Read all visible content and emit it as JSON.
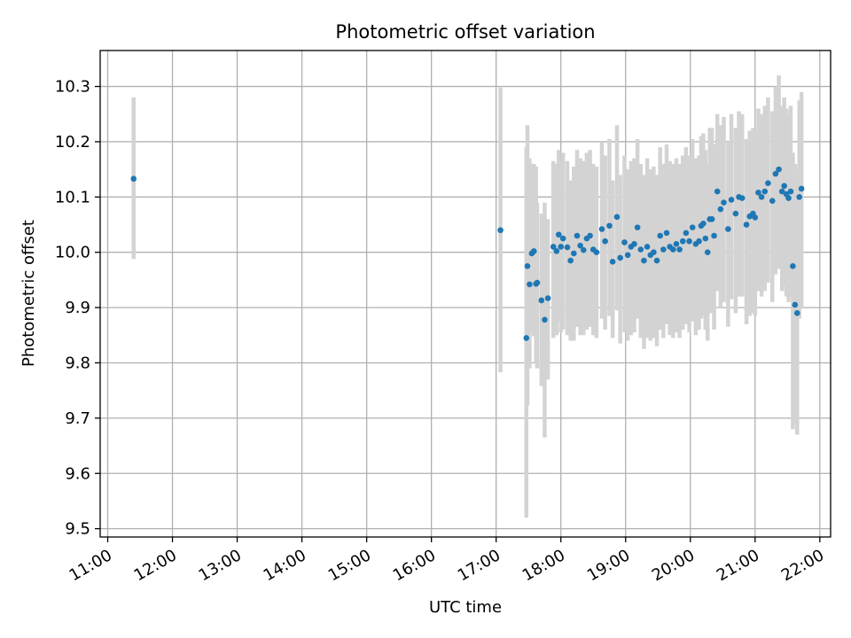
{
  "chart_data": {
    "type": "scatter",
    "title": "Photometric offset variation",
    "xlabel": "UTC time",
    "ylabel": "Photometric offset",
    "xlim": [
      "10:53",
      "22:10"
    ],
    "ylim": [
      9.485,
      10.365
    ],
    "x_ticks": [
      "11:00",
      "12:00",
      "13:00",
      "14:00",
      "15:00",
      "16:00",
      "17:00",
      "18:00",
      "19:00",
      "20:00",
      "21:00",
      "22:00"
    ],
    "y_ticks": [
      9.5,
      9.6,
      9.7,
      9.8,
      9.9,
      10.0,
      10.1,
      10.2,
      10.3
    ],
    "y_tick_labels": [
      "9.5",
      "9.6",
      "9.7",
      "9.8",
      "9.9",
      "10.0",
      "10.1",
      "10.2",
      "10.3"
    ],
    "grid": true,
    "colors": {
      "points": "#1f77b4",
      "error_bars": "#d3d3d3",
      "grid": "#b0b0b0"
    },
    "series": [
      {
        "x": [
          "11:24",
          "17:04",
          "17:28",
          "17:29",
          "17:31",
          "17:33",
          "17:35",
          "17:37",
          "17:38",
          "17:42",
          "17:45",
          "17:48",
          "17:53",
          "17:56",
          "17:58",
          "18:00",
          "18:02",
          "18:06",
          "18:09",
          "18:12",
          "18:15",
          "18:18",
          "18:21",
          "18:24",
          "18:27",
          "18:30",
          "18:33",
          "18:38",
          "18:41",
          "18:45",
          "18:48",
          "18:52",
          "18:55",
          "18:59",
          "19:02",
          "19:05",
          "19:08",
          "19:11",
          "19:14",
          "19:17",
          "19:20",
          "19:23",
          "19:26",
          "19:29",
          "19:32",
          "19:35",
          "19:38",
          "19:41",
          "19:44",
          "19:47",
          "19:50",
          "19:53",
          "19:56",
          "19:59",
          "20:02",
          "20:05",
          "20:08",
          "20:10",
          "20:12",
          "20:14",
          "20:16",
          "20:18",
          "20:20",
          "20:22",
          "20:25",
          "20:28",
          "20:31",
          "20:35",
          "20:38",
          "20:42",
          "20:45",
          "20:48",
          "20:52",
          "20:55",
          "20:58",
          "21:00",
          "21:03",
          "21:06",
          "21:09",
          "21:12",
          "21:16",
          "21:19",
          "21:22",
          "21:25",
          "21:27",
          "21:29",
          "21:31",
          "21:33",
          "21:35",
          "21:37",
          "21:39",
          "21:41",
          "21:43"
        ],
        "y": [
          10.133,
          10.04,
          9.845,
          9.975,
          9.942,
          9.998,
          10.002,
          9.943,
          9.945,
          9.913,
          9.878,
          9.917,
          10.01,
          10.002,
          10.032,
          10.01,
          10.025,
          10.009,
          9.985,
          9.998,
          10.03,
          10.012,
          10.004,
          10.025,
          10.03,
          10.005,
          10.0,
          10.042,
          10.02,
          10.048,
          9.983,
          10.064,
          9.99,
          10.018,
          9.995,
          10.01,
          10.015,
          10.045,
          10.005,
          9.985,
          10.01,
          9.995,
          10.0,
          9.985,
          10.03,
          10.005,
          10.035,
          10.01,
          10.005,
          10.015,
          10.005,
          10.02,
          10.035,
          10.02,
          10.045,
          10.015,
          10.02,
          10.048,
          10.052,
          10.025,
          10.0,
          10.06,
          10.06,
          10.03,
          10.11,
          10.078,
          10.09,
          10.042,
          10.095,
          10.07,
          10.1,
          10.098,
          10.05,
          10.065,
          10.07,
          10.063,
          10.108,
          10.1,
          10.11,
          10.125,
          10.093,
          10.142,
          10.15,
          10.11,
          10.12,
          10.105,
          10.098,
          10.11,
          9.975,
          9.905,
          9.89,
          10.1,
          10.115
        ],
        "err_low": [
          9.988,
          9.783,
          9.52,
          9.723,
          9.79,
          9.855,
          9.848,
          9.8,
          9.79,
          9.758,
          9.665,
          9.77,
          9.845,
          9.85,
          9.875,
          9.855,
          9.86,
          9.85,
          9.84,
          9.84,
          9.865,
          9.85,
          9.85,
          9.86,
          9.865,
          9.85,
          9.845,
          9.88,
          9.86,
          9.885,
          9.845,
          9.895,
          9.835,
          9.855,
          9.84,
          9.85,
          9.855,
          9.88,
          9.845,
          9.825,
          9.845,
          9.84,
          9.845,
          9.83,
          9.86,
          9.845,
          9.87,
          9.85,
          9.845,
          9.855,
          9.845,
          9.86,
          9.87,
          9.855,
          9.875,
          9.85,
          9.86,
          9.88,
          9.885,
          9.86,
          9.84,
          9.89,
          9.89,
          9.86,
          9.93,
          9.9,
          9.91,
          9.865,
          9.915,
          9.89,
          9.92,
          9.92,
          9.87,
          9.885,
          9.89,
          9.885,
          9.93,
          9.92,
          9.93,
          9.945,
          9.91,
          9.96,
          9.97,
          9.93,
          9.94,
          9.92,
          9.91,
          9.92,
          9.68,
          9.69,
          9.67,
          9.88,
          9.9
        ],
        "err_high": [
          10.28,
          10.298,
          10.19,
          10.23,
          10.17,
          10.16,
          10.16,
          10.155,
          10.09,
          10.07,
          10.09,
          10.06,
          10.165,
          10.16,
          10.185,
          10.165,
          10.18,
          10.165,
          10.13,
          10.155,
          10.185,
          10.17,
          10.165,
          10.18,
          10.185,
          10.16,
          10.155,
          10.2,
          10.175,
          10.205,
          10.13,
          10.23,
          10.14,
          10.175,
          10.15,
          10.165,
          10.17,
          10.205,
          10.16,
          10.14,
          10.17,
          10.15,
          10.155,
          10.14,
          10.19,
          10.16,
          10.195,
          10.165,
          10.16,
          10.17,
          10.16,
          10.175,
          10.19,
          10.175,
          10.205,
          10.17,
          10.175,
          10.21,
          10.215,
          10.185,
          10.16,
          10.225,
          10.225,
          10.195,
          10.25,
          10.23,
          10.245,
          10.2,
          10.25,
          10.225,
          10.255,
          10.25,
          10.205,
          10.22,
          10.225,
          10.22,
          10.26,
          10.25,
          10.265,
          10.28,
          10.255,
          10.3,
          10.32,
          10.265,
          10.28,
          10.26,
          10.25,
          10.265,
          10.18,
          10.16,
          10.15,
          10.275,
          10.29
        ]
      }
    ]
  }
}
